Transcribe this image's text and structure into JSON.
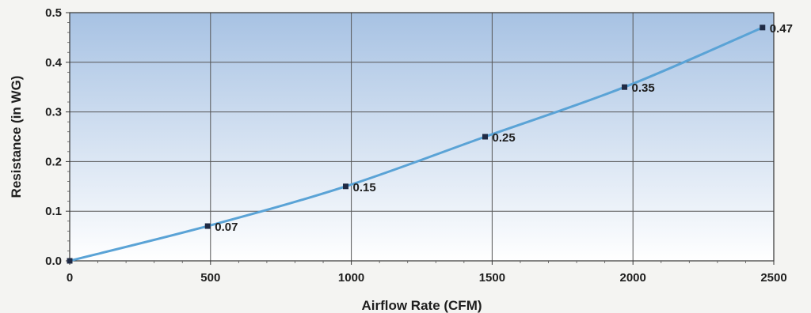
{
  "chart_data": {
    "type": "line",
    "xlabel": "Airflow Rate (CFM)",
    "ylabel": "Resistance (in WG)",
    "xlim": [
      0,
      2500
    ],
    "ylim": [
      0,
      0.5
    ],
    "x_ticks": [
      "0",
      "500",
      "1000",
      "1500",
      "2000",
      "2500"
    ],
    "y_ticks": [
      "0.0",
      "0.1",
      "0.2",
      "0.3",
      "0.4",
      "0.5"
    ],
    "grid": true,
    "series": [
      {
        "color": "#5aa3d6",
        "marker_color": "#1f2a44",
        "points": [
          {
            "x": 0,
            "y": 0.0,
            "label": ""
          },
          {
            "x": 490,
            "y": 0.07,
            "label": "0.07"
          },
          {
            "x": 980,
            "y": 0.15,
            "label": "0.15"
          },
          {
            "x": 1475,
            "y": 0.25,
            "label": "0.25"
          },
          {
            "x": 1970,
            "y": 0.35,
            "label": "0.35"
          },
          {
            "x": 2460,
            "y": 0.47,
            "label": "0.47"
          }
        ]
      }
    ],
    "plot_background": {
      "top": "#a7c2e3",
      "bottom": "#ffffff"
    }
  }
}
